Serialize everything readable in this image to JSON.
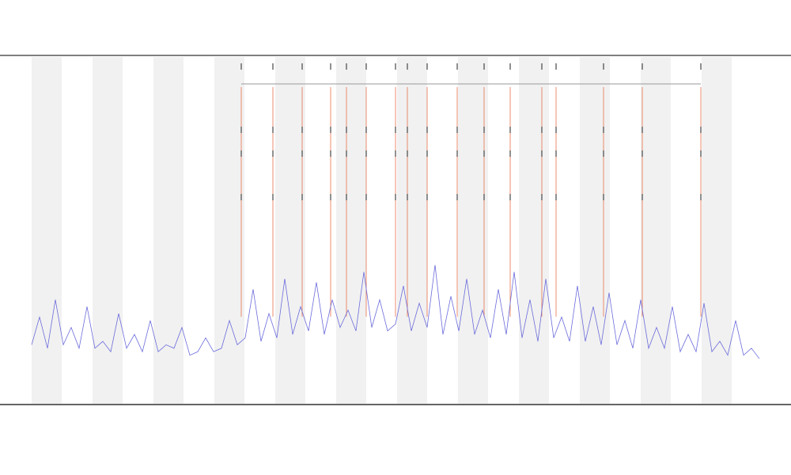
{
  "chart_data": {
    "type": "line",
    "x": [
      0,
      1,
      2,
      3,
      4,
      5,
      6,
      7,
      8,
      9,
      10,
      11,
      12,
      13,
      14,
      15,
      16,
      17,
      18,
      19,
      20,
      21,
      22,
      23,
      24,
      25,
      26,
      27,
      28,
      29,
      30,
      31,
      32,
      33,
      34,
      35,
      36,
      37,
      38,
      39,
      40,
      41,
      42,
      43,
      44,
      45,
      46,
      47,
      48,
      49,
      50,
      51,
      52,
      53,
      54,
      55,
      56,
      57,
      58,
      59,
      60,
      61,
      62,
      63,
      64,
      65,
      66,
      67,
      68,
      69,
      70,
      71,
      72,
      73,
      74,
      75,
      76,
      77,
      78,
      79,
      80,
      81,
      82,
      83,
      84,
      85,
      86,
      87,
      88,
      89,
      90,
      91,
      92
    ],
    "series": [
      {
        "color": "#6b6bdc",
        "values": [
          17,
          25,
          16,
          30,
          17,
          22,
          16,
          28,
          16,
          18,
          15,
          26,
          16,
          20,
          15,
          24,
          15,
          17,
          16,
          22,
          14,
          15,
          19,
          15,
          16,
          24,
          17,
          19,
          33,
          18,
          26,
          19,
          36,
          20,
          28,
          21,
          35,
          20,
          30,
          22,
          27,
          21,
          38,
          22,
          30,
          21,
          23,
          34,
          21,
          29,
          22,
          40,
          20,
          31,
          21,
          36,
          20,
          27,
          19,
          33,
          20,
          38,
          19,
          30,
          18,
          36,
          19,
          25,
          18,
          34,
          18,
          28,
          17,
          32,
          17,
          24,
          16,
          30,
          16,
          22,
          16,
          28,
          15,
          20,
          15,
          29,
          15,
          18,
          14,
          24,
          14,
          16,
          13
        ]
      }
    ],
    "events": {
      "color": "#e8704a",
      "x": [
        26.5,
        30.5,
        34.2,
        37.8,
        39.8,
        42.3,
        46,
        47.5,
        50,
        53.8,
        57.2,
        60.5,
        64.5,
        66.3,
        72.3,
        77.2,
        84.6
      ]
    },
    "xlim": [
      0,
      92
    ],
    "ylim": [
      0,
      100
    ]
  }
}
